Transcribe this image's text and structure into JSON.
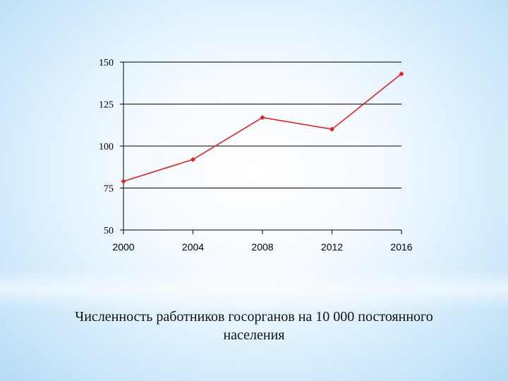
{
  "colors": {
    "line": "#e32020",
    "axis": "#000000",
    "grid": "#000000"
  },
  "chart_data": {
    "type": "line",
    "x": [
      2000,
      2004,
      2008,
      2012,
      2016
    ],
    "categories": [
      "2000",
      "2004",
      "2008",
      "2012",
      "2016"
    ],
    "series": [
      {
        "values": [
          79,
          92,
          117,
          110,
          143
        ]
      }
    ],
    "ylim": [
      50,
      150
    ],
    "yticks": [
      50,
      75,
      100,
      125,
      150
    ],
    "grid": true,
    "markers": true,
    "legend": "none"
  },
  "caption": {
    "line1": "Численность работников госорганов на 10 000 постоянного",
    "line2": "населения"
  }
}
